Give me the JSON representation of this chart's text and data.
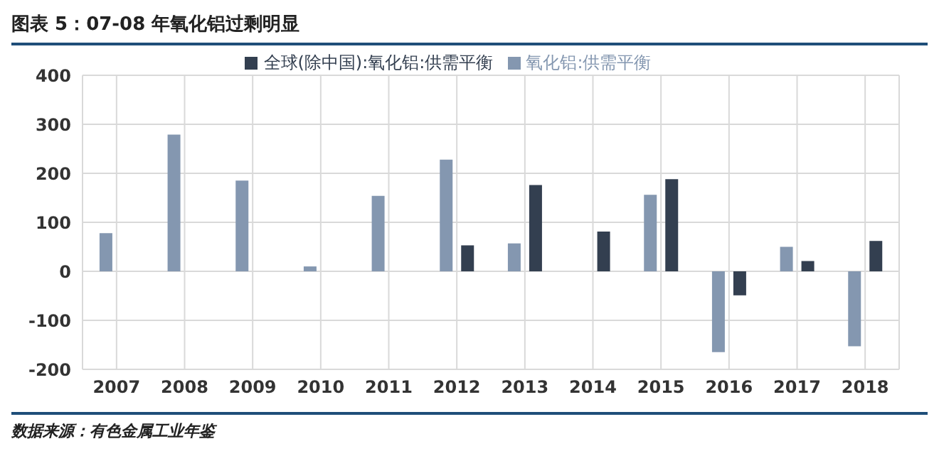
{
  "chart_data": {
    "type": "bar",
    "title": "图表 5：07-08 年氧化铝过剩明显",
    "categories": [
      "2007",
      "2008",
      "2009",
      "2010",
      "2011",
      "2012",
      "2013",
      "2014",
      "2015",
      "2016",
      "2017",
      "2018"
    ],
    "series": [
      {
        "name": "氧化铝:供需平衡",
        "color": "#8497b0",
        "values": [
          78,
          279,
          185,
          10,
          154,
          228,
          57,
          null,
          156,
          -165,
          50,
          -153
        ]
      },
      {
        "name": "全球(除中国):氧化铝:供需平衡",
        "color": "#333f50",
        "values": [
          null,
          null,
          null,
          null,
          null,
          53,
          176,
          81,
          188,
          -49,
          21,
          62
        ]
      }
    ],
    "ylim": [
      -200,
      400
    ],
    "yticks": [
      -200,
      -100,
      0,
      100,
      200,
      300,
      400
    ],
    "grid": true,
    "legend": "top",
    "annotations": [
      "数据来源：有色金属工业年鉴"
    ]
  }
}
